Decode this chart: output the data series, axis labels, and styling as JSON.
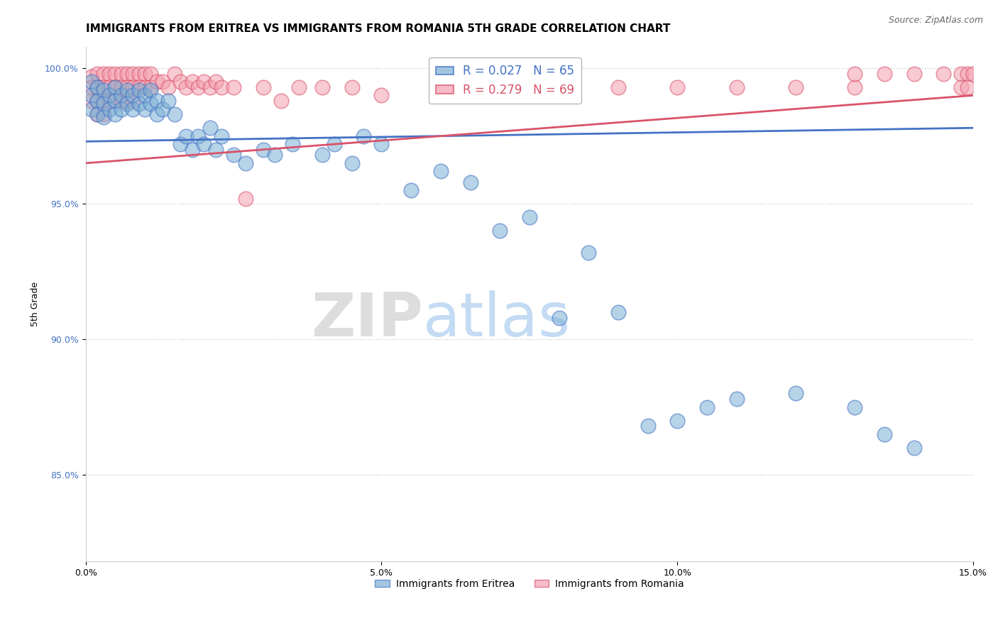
{
  "title": "IMMIGRANTS FROM ERITREA VS IMMIGRANTS FROM ROMANIA 5TH GRADE CORRELATION CHART",
  "source_text": "Source: ZipAtlas.com",
  "ylabel": "5th Grade",
  "xlim": [
    0.0,
    0.15
  ],
  "ylim": [
    0.818,
    1.008
  ],
  "xticks": [
    0.0,
    0.05,
    0.1,
    0.15
  ],
  "xtick_labels": [
    "0.0%",
    "5.0%",
    "10.0%",
    "15.0%"
  ],
  "yticks": [
    0.85,
    0.9,
    0.95,
    1.0
  ],
  "ytick_labels": [
    "85.0%",
    "90.0%",
    "95.0%",
    "100.0%"
  ],
  "legend_eritrea": "Immigrants from Eritrea",
  "legend_romania": "Immigrants from Romania",
  "R_eritrea": 0.027,
  "N_eritrea": 65,
  "R_romania": 0.279,
  "N_romania": 69,
  "color_eritrea": "#7BAFD4",
  "color_romania": "#F4A0B0",
  "color_eritrea_line": "#4472C4",
  "color_romania_line": "#D9536A",
  "eritrea_trend": [
    0.973,
    0.978
  ],
  "romania_trend": [
    0.965,
    0.99
  ],
  "eritrea_x": [
    0.001,
    0.001,
    0.001,
    0.002,
    0.002,
    0.002,
    0.003,
    0.003,
    0.003,
    0.004,
    0.004,
    0.005,
    0.005,
    0.005,
    0.006,
    0.006,
    0.007,
    0.007,
    0.008,
    0.008,
    0.009,
    0.009,
    0.01,
    0.01,
    0.011,
    0.011,
    0.012,
    0.012,
    0.013,
    0.014,
    0.015,
    0.016,
    0.017,
    0.018,
    0.019,
    0.02,
    0.021,
    0.022,
    0.023,
    0.025,
    0.027,
    0.03,
    0.032,
    0.035,
    0.04,
    0.042,
    0.045,
    0.047,
    0.05,
    0.055,
    0.06,
    0.065,
    0.07,
    0.075,
    0.08,
    0.085,
    0.09,
    0.095,
    0.1,
    0.105,
    0.11,
    0.12,
    0.13,
    0.135,
    0.14
  ],
  "eritrea_y": [
    0.995,
    0.99,
    0.985,
    0.993,
    0.988,
    0.983,
    0.992,
    0.987,
    0.982,
    0.99,
    0.985,
    0.993,
    0.988,
    0.983,
    0.99,
    0.985,
    0.992,
    0.987,
    0.99,
    0.985,
    0.992,
    0.987,
    0.99,
    0.985,
    0.992,
    0.987,
    0.988,
    0.983,
    0.985,
    0.988,
    0.983,
    0.972,
    0.975,
    0.97,
    0.975,
    0.972,
    0.978,
    0.97,
    0.975,
    0.968,
    0.965,
    0.97,
    0.968,
    0.972,
    0.968,
    0.972,
    0.965,
    0.975,
    0.972,
    0.955,
    0.962,
    0.958,
    0.94,
    0.945,
    0.908,
    0.932,
    0.91,
    0.868,
    0.87,
    0.875,
    0.878,
    0.88,
    0.875,
    0.865,
    0.86
  ],
  "romania_x": [
    0.001,
    0.001,
    0.001,
    0.002,
    0.002,
    0.002,
    0.002,
    0.003,
    0.003,
    0.003,
    0.003,
    0.004,
    0.004,
    0.004,
    0.005,
    0.005,
    0.005,
    0.006,
    0.006,
    0.006,
    0.007,
    0.007,
    0.007,
    0.008,
    0.008,
    0.008,
    0.009,
    0.009,
    0.01,
    0.01,
    0.011,
    0.011,
    0.012,
    0.013,
    0.014,
    0.015,
    0.016,
    0.017,
    0.018,
    0.019,
    0.02,
    0.021,
    0.022,
    0.023,
    0.025,
    0.027,
    0.03,
    0.033,
    0.036,
    0.04,
    0.045,
    0.05,
    0.06,
    0.07,
    0.08,
    0.09,
    0.1,
    0.11,
    0.12,
    0.13,
    0.13,
    0.135,
    0.14,
    0.145,
    0.148,
    0.148,
    0.149,
    0.149,
    0.15
  ],
  "romania_y": [
    0.997,
    0.993,
    0.988,
    0.998,
    0.993,
    0.988,
    0.983,
    0.998,
    0.993,
    0.988,
    0.983,
    0.998,
    0.993,
    0.988,
    0.998,
    0.993,
    0.988,
    0.998,
    0.993,
    0.988,
    0.998,
    0.993,
    0.988,
    0.998,
    0.993,
    0.988,
    0.998,
    0.993,
    0.998,
    0.993,
    0.998,
    0.993,
    0.995,
    0.995,
    0.993,
    0.998,
    0.995,
    0.993,
    0.995,
    0.993,
    0.995,
    0.993,
    0.995,
    0.993,
    0.993,
    0.952,
    0.993,
    0.988,
    0.993,
    0.993,
    0.993,
    0.99,
    0.993,
    0.993,
    0.993,
    0.993,
    0.993,
    0.993,
    0.993,
    0.993,
    0.998,
    0.998,
    0.998,
    0.998,
    0.998,
    0.993,
    0.998,
    0.993,
    0.998
  ],
  "watermark_zip": "ZIP",
  "watermark_atlas": "atlas",
  "background_color": "#FFFFFF",
  "grid_color": "#CCCCCC",
  "title_fontsize": 11,
  "axis_fontsize": 9,
  "tick_fontsize": 9
}
